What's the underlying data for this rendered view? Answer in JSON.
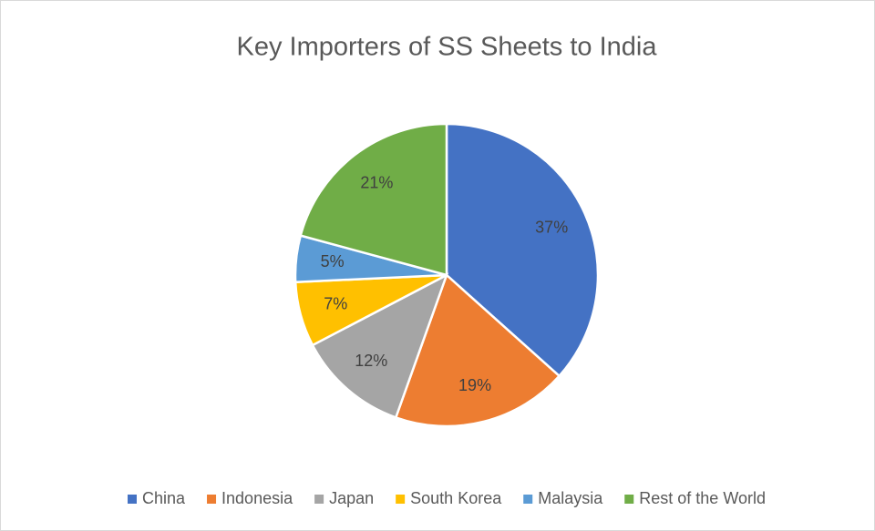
{
  "chart_data": {
    "type": "pie",
    "title": "Key Importers of SS Sheets to India",
    "categories": [
      "China",
      "Indonesia",
      "Japan",
      "South Korea",
      "Malaysia",
      "Rest of the World"
    ],
    "values": [
      37,
      19,
      12,
      7,
      5,
      21
    ],
    "value_labels": [
      "37%",
      "19%",
      "12%",
      "7%",
      "5%",
      "21%"
    ],
    "colors": [
      "#4472c4",
      "#ed7d31",
      "#a5a5a5",
      "#ffc000",
      "#5b9bd5",
      "#70ad47"
    ],
    "legend": "bottom"
  }
}
